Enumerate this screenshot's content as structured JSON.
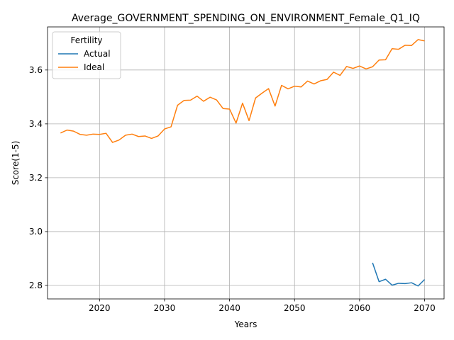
{
  "chart_data": {
    "type": "line",
    "title": "Average_GOVERNMENT_SPENDING_ON_ENVIRONMENT_Female_Q1_IQ",
    "xlabel": "Years",
    "ylabel": "Score(1-5)",
    "xlim": [
      2012,
      2073
    ],
    "ylim": [
      2.75,
      3.76
    ],
    "xticks": [
      2020,
      2030,
      2040,
      2050,
      2060,
      2070
    ],
    "yticks": [
      2.8,
      3.0,
      3.2,
      3.4,
      3.6
    ],
    "grid": true,
    "legend": {
      "title": "Fertility",
      "position": "upper-left"
    },
    "series": [
      {
        "name": "Actual",
        "color": "#1f77b4",
        "x": [
          2062,
          2063,
          2064,
          2065,
          2066,
          2067,
          2068,
          2069,
          2070
        ],
        "y": [
          2.884,
          2.814,
          2.823,
          2.801,
          2.808,
          2.807,
          2.81,
          2.798,
          2.822
        ]
      },
      {
        "name": "Ideal",
        "color": "#ff7f0e",
        "x": [
          2014,
          2015,
          2016,
          2017,
          2018,
          2019,
          2020,
          2021,
          2022,
          2023,
          2024,
          2025,
          2026,
          2027,
          2028,
          2029,
          2030,
          2031,
          2032,
          2033,
          2034,
          2035,
          2036,
          2037,
          2038,
          2039,
          2040,
          2041,
          2042,
          2043,
          2044,
          2045,
          2046,
          2047,
          2048,
          2049,
          2050,
          2051,
          2052,
          2053,
          2054,
          2055,
          2056,
          2057,
          2058,
          2059,
          2060,
          2061,
          2062,
          2063,
          2064,
          2065,
          2066,
          2067,
          2068,
          2069,
          2070
        ],
        "y": [
          3.366,
          3.377,
          3.373,
          3.361,
          3.358,
          3.362,
          3.361,
          3.365,
          3.331,
          3.34,
          3.358,
          3.362,
          3.353,
          3.355,
          3.346,
          3.355,
          3.381,
          3.389,
          3.469,
          3.487,
          3.488,
          3.503,
          3.484,
          3.499,
          3.489,
          3.457,
          3.455,
          3.403,
          3.477,
          3.412,
          3.496,
          3.514,
          3.531,
          3.466,
          3.543,
          3.53,
          3.54,
          3.537,
          3.559,
          3.548,
          3.56,
          3.565,
          3.592,
          3.58,
          3.613,
          3.606,
          3.615,
          3.604,
          3.612,
          3.637,
          3.638,
          3.679,
          3.677,
          3.692,
          3.691,
          3.713,
          3.708
        ]
      }
    ]
  }
}
